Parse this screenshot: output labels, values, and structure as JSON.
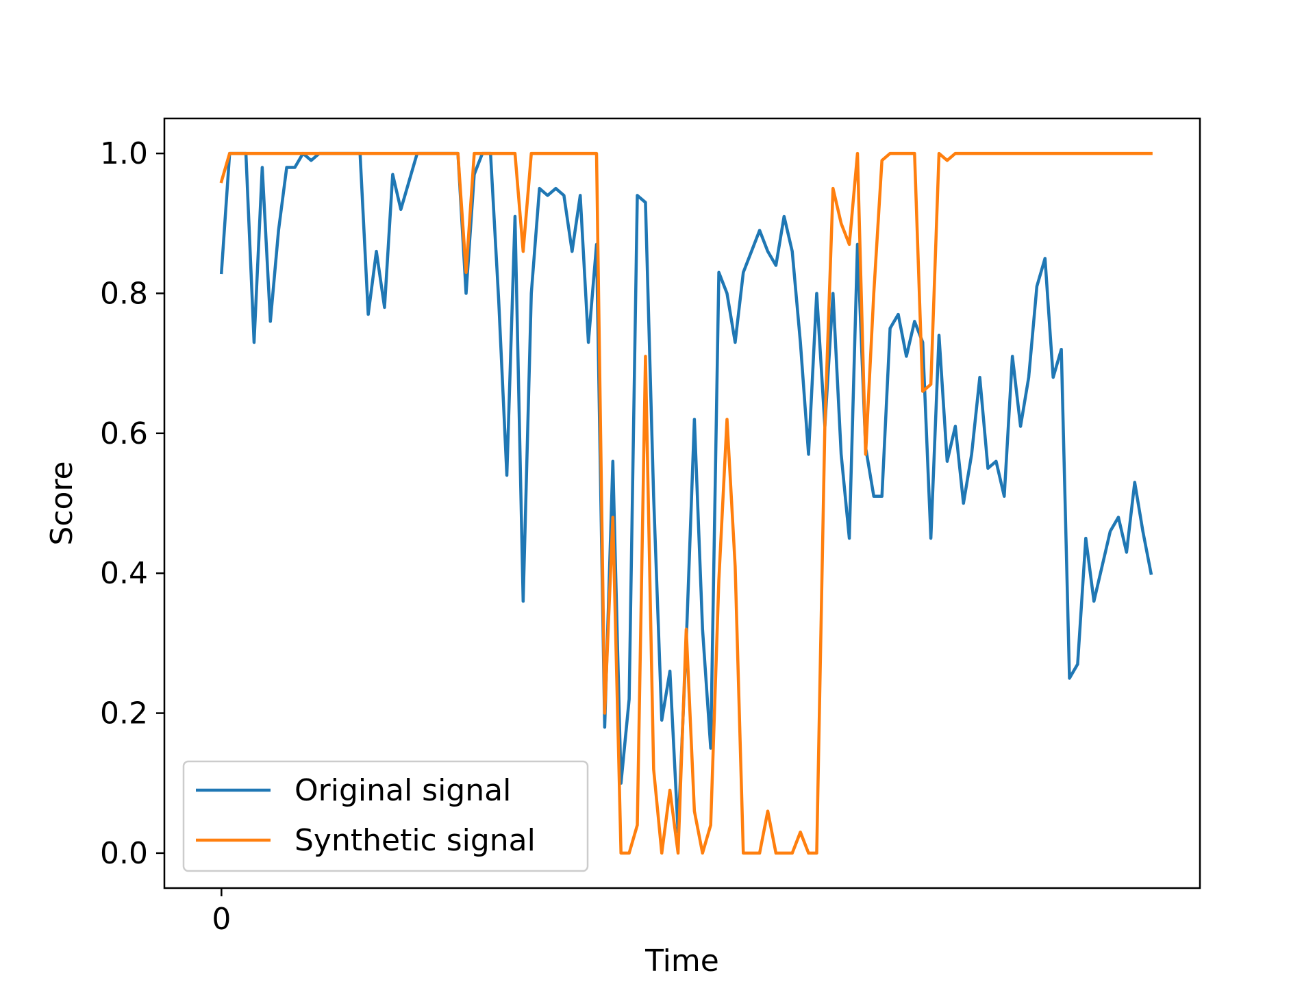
{
  "chart_data": {
    "type": "line",
    "title": "",
    "xlabel": "Time",
    "ylabel": "Score",
    "xlim": [
      -7,
      120
    ],
    "ylim": [
      -0.05,
      1.05
    ],
    "x_ticks": [
      0
    ],
    "x_tick_labels": [
      "0"
    ],
    "y_ticks": [
      0.0,
      0.2,
      0.4,
      0.6,
      0.8,
      1.0
    ],
    "y_tick_labels": [
      "0.0",
      "0.2",
      "0.4",
      "0.6",
      "0.8",
      "1.0"
    ],
    "grid": false,
    "legend_position": "lower-left",
    "series": [
      {
        "name": "Original signal",
        "color": "#1f77b4",
        "points": [
          [
            0,
            0.83
          ],
          [
            1,
            1.0
          ],
          [
            2,
            1.0
          ],
          [
            3,
            1.0
          ],
          [
            4,
            0.73
          ],
          [
            5,
            0.98
          ],
          [
            6,
            0.76
          ],
          [
            7,
            0.89
          ],
          [
            8,
            0.98
          ],
          [
            9,
            0.98
          ],
          [
            10,
            1.0
          ],
          [
            11,
            0.99
          ],
          [
            12,
            1.0
          ],
          [
            13,
            1.0
          ],
          [
            14,
            1.0
          ],
          [
            15,
            1.0
          ],
          [
            16,
            1.0
          ],
          [
            17,
            1.0
          ],
          [
            18,
            0.77
          ],
          [
            19,
            0.86
          ],
          [
            20,
            0.78
          ],
          [
            21,
            0.97
          ],
          [
            22,
            0.92
          ],
          [
            23,
            0.96
          ],
          [
            24,
            1.0
          ],
          [
            25,
            1.0
          ],
          [
            26,
            1.0
          ],
          [
            27,
            1.0
          ],
          [
            28,
            1.0
          ],
          [
            29,
            1.0
          ],
          [
            30,
            0.8
          ],
          [
            31,
            0.97
          ],
          [
            32,
            1.0
          ],
          [
            33,
            1.0
          ],
          [
            34,
            0.79
          ],
          [
            35,
            0.54
          ],
          [
            36,
            0.91
          ],
          [
            37,
            0.36
          ],
          [
            38,
            0.8
          ],
          [
            39,
            0.95
          ],
          [
            40,
            0.94
          ],
          [
            41,
            0.95
          ],
          [
            42,
            0.94
          ],
          [
            43,
            0.86
          ],
          [
            44,
            0.94
          ],
          [
            45,
            0.73
          ],
          [
            46,
            0.87
          ],
          [
            47,
            0.18
          ],
          [
            48,
            0.56
          ],
          [
            49,
            0.1
          ],
          [
            50,
            0.22
          ],
          [
            51,
            0.94
          ],
          [
            52,
            0.93
          ],
          [
            53,
            0.51
          ],
          [
            54,
            0.19
          ],
          [
            55,
            0.26
          ],
          [
            56,
            0.03
          ],
          [
            57,
            0.3
          ],
          [
            58,
            0.62
          ],
          [
            59,
            0.32
          ],
          [
            60,
            0.15
          ],
          [
            61,
            0.83
          ],
          [
            62,
            0.8
          ],
          [
            63,
            0.73
          ],
          [
            64,
            0.83
          ],
          [
            65,
            0.86
          ],
          [
            66,
            0.89
          ],
          [
            67,
            0.86
          ],
          [
            68,
            0.84
          ],
          [
            69,
            0.91
          ],
          [
            70,
            0.86
          ],
          [
            71,
            0.73
          ],
          [
            72,
            0.57
          ],
          [
            73,
            0.8
          ],
          [
            74,
            0.61
          ],
          [
            75,
            0.8
          ],
          [
            76,
            0.57
          ],
          [
            77,
            0.45
          ],
          [
            78,
            0.87
          ],
          [
            79,
            0.58
          ],
          [
            80,
            0.51
          ],
          [
            81,
            0.51
          ],
          [
            82,
            0.75
          ],
          [
            83,
            0.77
          ],
          [
            84,
            0.71
          ],
          [
            85,
            0.76
          ],
          [
            86,
            0.73
          ],
          [
            87,
            0.45
          ],
          [
            88,
            0.74
          ],
          [
            89,
            0.56
          ],
          [
            90,
            0.61
          ],
          [
            91,
            0.5
          ],
          [
            92,
            0.57
          ],
          [
            93,
            0.68
          ],
          [
            94,
            0.55
          ],
          [
            95,
            0.56
          ],
          [
            96,
            0.51
          ],
          [
            97,
            0.71
          ],
          [
            98,
            0.61
          ],
          [
            99,
            0.68
          ],
          [
            100,
            0.81
          ],
          [
            101,
            0.85
          ],
          [
            102,
            0.68
          ],
          [
            103,
            0.72
          ],
          [
            104,
            0.25
          ],
          [
            105,
            0.27
          ],
          [
            106,
            0.45
          ],
          [
            107,
            0.36
          ],
          [
            108,
            0.41
          ],
          [
            109,
            0.46
          ],
          [
            110,
            0.48
          ],
          [
            111,
            0.43
          ],
          [
            112,
            0.53
          ],
          [
            113,
            0.46
          ],
          [
            114,
            0.4
          ]
        ]
      },
      {
        "name": "Synthetic signal",
        "color": "#ff7f0e",
        "points": [
          [
            0,
            0.96
          ],
          [
            1,
            1.0
          ],
          [
            2,
            1.0
          ],
          [
            3,
            1.0
          ],
          [
            4,
            1.0
          ],
          [
            5,
            1.0
          ],
          [
            6,
            1.0
          ],
          [
            7,
            1.0
          ],
          [
            8,
            1.0
          ],
          [
            9,
            1.0
          ],
          [
            10,
            1.0
          ],
          [
            11,
            1.0
          ],
          [
            12,
            1.0
          ],
          [
            13,
            1.0
          ],
          [
            14,
            1.0
          ],
          [
            15,
            1.0
          ],
          [
            16,
            1.0
          ],
          [
            17,
            1.0
          ],
          [
            18,
            1.0
          ],
          [
            19,
            1.0
          ],
          [
            20,
            1.0
          ],
          [
            21,
            1.0
          ],
          [
            22,
            1.0
          ],
          [
            23,
            1.0
          ],
          [
            24,
            1.0
          ],
          [
            25,
            1.0
          ],
          [
            26,
            1.0
          ],
          [
            27,
            1.0
          ],
          [
            28,
            1.0
          ],
          [
            29,
            1.0
          ],
          [
            30,
            0.83
          ],
          [
            31,
            1.0
          ],
          [
            32,
            1.0
          ],
          [
            33,
            1.0
          ],
          [
            34,
            1.0
          ],
          [
            35,
            1.0
          ],
          [
            36,
            1.0
          ],
          [
            37,
            0.86
          ],
          [
            38,
            1.0
          ],
          [
            39,
            1.0
          ],
          [
            40,
            1.0
          ],
          [
            41,
            1.0
          ],
          [
            42,
            1.0
          ],
          [
            43,
            1.0
          ],
          [
            44,
            1.0
          ],
          [
            45,
            1.0
          ],
          [
            46,
            1.0
          ],
          [
            47,
            0.2
          ],
          [
            48,
            0.48
          ],
          [
            49,
            0.0
          ],
          [
            50,
            0.0
          ],
          [
            51,
            0.04
          ],
          [
            52,
            0.71
          ],
          [
            53,
            0.12
          ],
          [
            54,
            0.0
          ],
          [
            55,
            0.09
          ],
          [
            56,
            0.0
          ],
          [
            57,
            0.32
          ],
          [
            58,
            0.06
          ],
          [
            59,
            0.0
          ],
          [
            60,
            0.04
          ],
          [
            61,
            0.39
          ],
          [
            62,
            0.62
          ],
          [
            63,
            0.41
          ],
          [
            64,
            0.0
          ],
          [
            65,
            0.0
          ],
          [
            66,
            0.0
          ],
          [
            67,
            0.06
          ],
          [
            68,
            0.0
          ],
          [
            69,
            0.0
          ],
          [
            70,
            0.0
          ],
          [
            71,
            0.03
          ],
          [
            72,
            0.0
          ],
          [
            73,
            0.0
          ],
          [
            74,
            0.61
          ],
          [
            75,
            0.95
          ],
          [
            76,
            0.9
          ],
          [
            77,
            0.87
          ],
          [
            78,
            1.0
          ],
          [
            79,
            0.57
          ],
          [
            80,
            0.8
          ],
          [
            81,
            0.99
          ],
          [
            82,
            1.0
          ],
          [
            83,
            1.0
          ],
          [
            84,
            1.0
          ],
          [
            85,
            1.0
          ],
          [
            86,
            0.66
          ],
          [
            87,
            0.67
          ],
          [
            88,
            1.0
          ],
          [
            89,
            0.99
          ],
          [
            90,
            1.0
          ],
          [
            91,
            1.0
          ],
          [
            92,
            1.0
          ],
          [
            93,
            1.0
          ],
          [
            94,
            1.0
          ],
          [
            95,
            1.0
          ],
          [
            96,
            1.0
          ],
          [
            97,
            1.0
          ],
          [
            98,
            1.0
          ],
          [
            99,
            1.0
          ],
          [
            100,
            1.0
          ],
          [
            101,
            1.0
          ],
          [
            102,
            1.0
          ],
          [
            103,
            1.0
          ],
          [
            104,
            1.0
          ],
          [
            105,
            1.0
          ],
          [
            106,
            1.0
          ],
          [
            107,
            1.0
          ],
          [
            108,
            1.0
          ],
          [
            109,
            1.0
          ],
          [
            110,
            1.0
          ],
          [
            111,
            1.0
          ],
          [
            112,
            1.0
          ],
          [
            113,
            1.0
          ],
          [
            114,
            1.0
          ]
        ]
      }
    ]
  }
}
